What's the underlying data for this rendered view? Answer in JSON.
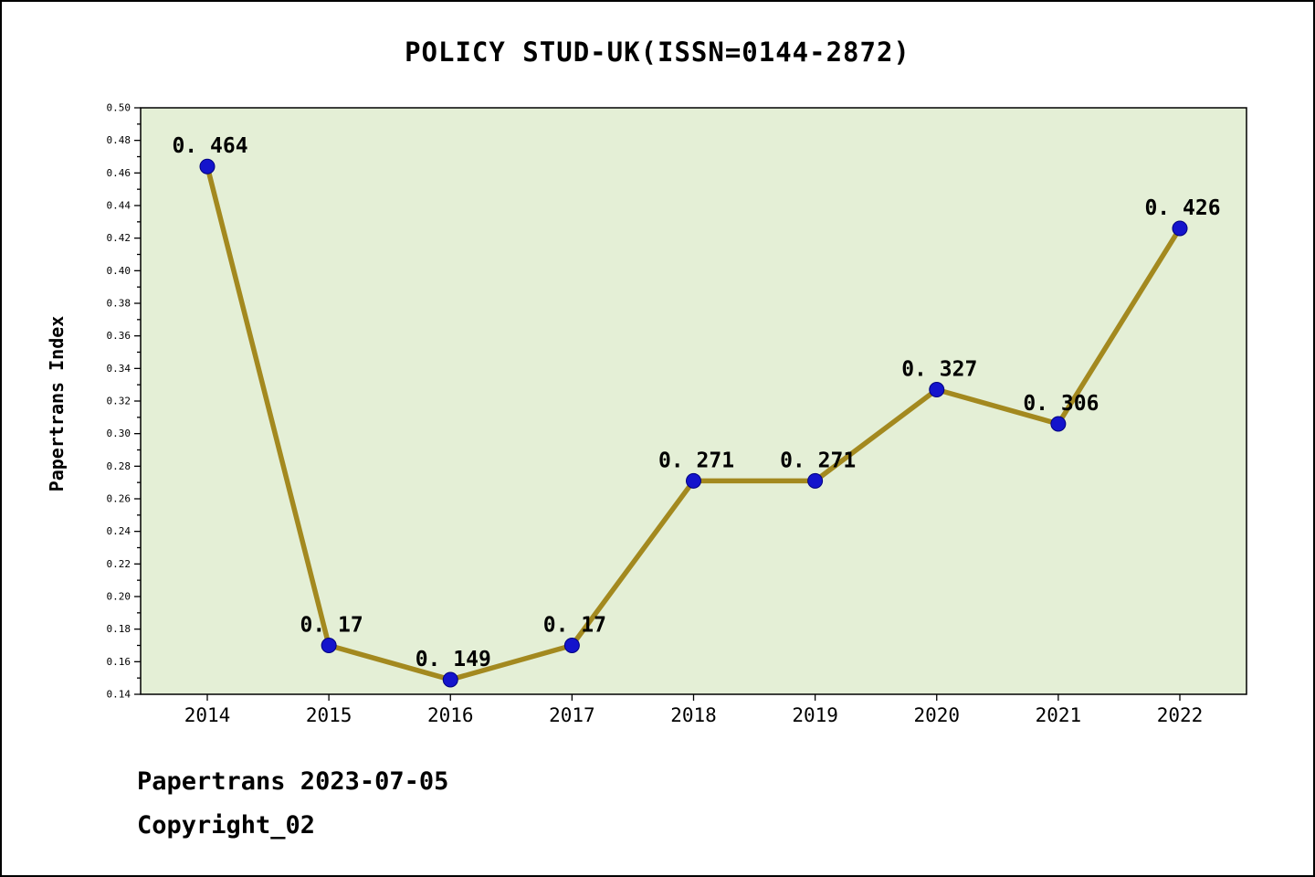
{
  "chart_data": {
    "type": "line",
    "title": "POLICY STUD-UK(ISSN=0144-2872)",
    "ylabel": "Papertrans Index",
    "xlabel": "",
    "categories": [
      "2014",
      "2015",
      "2016",
      "2017",
      "2018",
      "2019",
      "2020",
      "2021",
      "2022"
    ],
    "series": [
      {
        "name": "Papertrans Index",
        "values": [
          0.464,
          0.17,
          0.149,
          0.17,
          0.271,
          0.271,
          0.327,
          0.306,
          0.426
        ],
        "point_labels": [
          "0. 464",
          "0. 17",
          "0. 149",
          "0. 17",
          "0. 271",
          "0. 271",
          "0. 327",
          "0. 306",
          "0. 426"
        ]
      }
    ],
    "ylim": [
      0.14,
      0.5
    ],
    "ytick_step": 0.02,
    "ytick_labels": [
      "0.14",
      "0.16",
      "0.18",
      "0.20",
      "0.22",
      "0.24",
      "0.26",
      "0.28",
      "0.30",
      "0.32",
      "0.34",
      "0.36",
      "0.38",
      "0.40",
      "0.42",
      "0.44",
      "0.46",
      "0.48",
      "0.50"
    ],
    "grid": false,
    "legend": "none",
    "colors": {
      "line": "#a3891f",
      "marker_fill": "#1414cc",
      "marker_edge": "#000080",
      "plot_background": "#e4efd6",
      "axis": "#000000",
      "text": "#000000"
    }
  },
  "footer": {
    "line1": "Papertrans 2023-07-05",
    "line2": "Copyright_02"
  }
}
